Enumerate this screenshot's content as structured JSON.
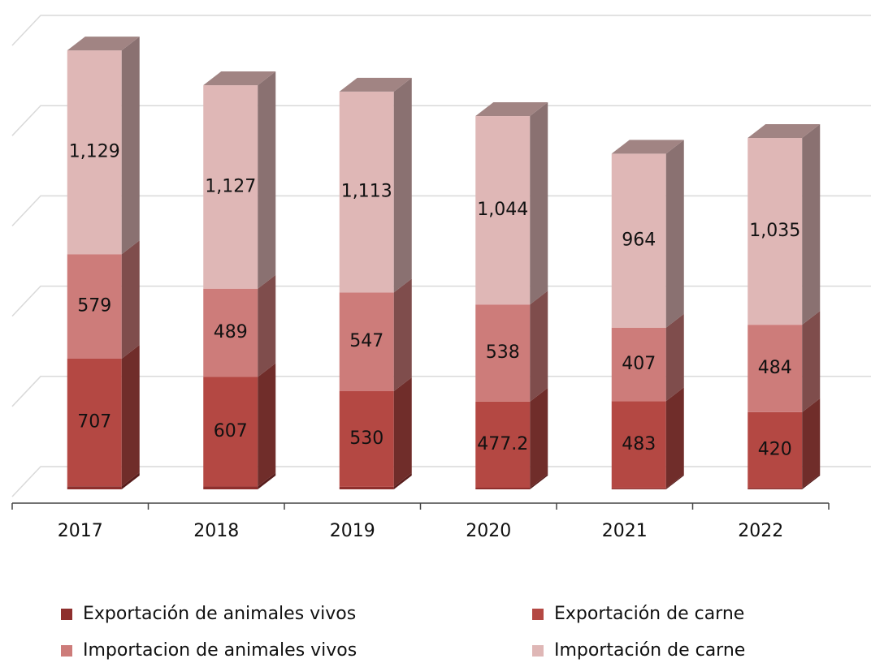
{
  "chart_data": {
    "type": "bar3d_stacked",
    "categories": [
      "2017",
      "2018",
      "2019",
      "2020",
      "2021",
      "2022"
    ],
    "series": [
      {
        "name": "Exportación de animales vivos",
        "color": "#8e2f2d",
        "values": [
          17,
          16,
          14,
          9,
          6,
          8
        ]
      },
      {
        "name": "Exportación de carne",
        "color": "#b44843",
        "values": [
          707,
          607,
          530,
          477.2,
          483,
          420
        ]
      },
      {
        "name": "Importacion de animales vivos",
        "color": "#cd7c7a",
        "values": [
          579,
          489,
          547,
          538,
          407,
          484
        ]
      },
      {
        "name": "Importación de carne",
        "color": "#dfb7b6",
        "values": [
          1129,
          1127,
          1113,
          1044,
          964,
          1035
        ],
        "value_labels": [
          "1,129",
          "1,127",
          "1,113",
          "1,044",
          "964",
          "1,035"
        ]
      }
    ],
    "ylim": [
      0,
      2500
    ],
    "yticks": [
      0,
      500,
      1000,
      1500,
      2000,
      2500
    ],
    "grid": true,
    "legend": "bottom"
  }
}
